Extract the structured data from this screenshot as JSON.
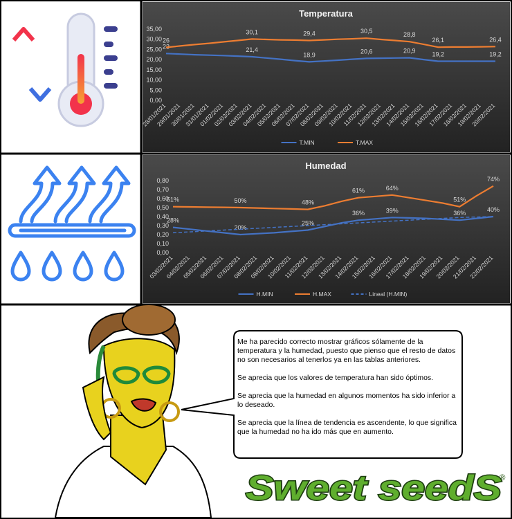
{
  "chart_data": [
    {
      "type": "line",
      "title": "Temperatura",
      "categories": [
        "28/01/2021",
        "29/01/2021",
        "30/01/2021",
        "31/01/2021",
        "01/02/2021",
        "02/02/2021",
        "03/02/2021",
        "04/02/2021",
        "05/02/2021",
        "06/02/2021",
        "07/02/2021",
        "08/02/2021",
        "09/02/2021",
        "10/02/2021",
        "11/02/2021",
        "12/02/2021",
        "13/02/2021",
        "14/02/2021",
        "15/02/2021",
        "16/02/2021",
        "17/02/2021",
        "18/02/2021",
        "19/02/2021",
        "20/02/2021"
      ],
      "series": [
        {
          "name": "T.MIN",
          "color": "#4472c4",
          "values": [
            23,
            22.7,
            22.4,
            22.2,
            22,
            21.7,
            21.4,
            20.8,
            20.2,
            19.5,
            18.9,
            19.3,
            19.7,
            20.2,
            20.6,
            20.7,
            20.8,
            20.9,
            20,
            19.2,
            19.2,
            19.2,
            19.2,
            19.2
          ],
          "value_labels": [
            "23",
            null,
            null,
            null,
            null,
            null,
            "21,4",
            null,
            null,
            null,
            "18,9",
            null,
            null,
            null,
            "20,6",
            null,
            null,
            "20,9",
            null,
            "19,2",
            null,
            null,
            null,
            "19,2"
          ]
        },
        {
          "name": "T.MAX",
          "color": "#ed7d31",
          "values": [
            26,
            26.7,
            27.4,
            28,
            28.7,
            29.4,
            30.1,
            29.9,
            29.7,
            29.6,
            29.4,
            29.7,
            30,
            30.2,
            30.5,
            29.9,
            29.4,
            28.8,
            27.5,
            26.1,
            26.2,
            26.2,
            26.3,
            26.4
          ],
          "value_labels": [
            "26",
            null,
            null,
            null,
            null,
            null,
            "30,1",
            null,
            null,
            null,
            "29,4",
            null,
            null,
            null,
            "30,5",
            null,
            null,
            "28,8",
            null,
            "26,1",
            null,
            null,
            null,
            "26,4"
          ]
        }
      ],
      "ylim": [
        0,
        35
      ],
      "yticks": [
        {
          "value": 0,
          "label": "0,00"
        },
        {
          "value": 5,
          "label": "5,00"
        },
        {
          "value": 10,
          "label": "10,00"
        },
        {
          "value": 15,
          "label": "15,00"
        },
        {
          "value": 20,
          "label": "20,00"
        },
        {
          "value": 25,
          "label": "25,00"
        },
        {
          "value": 30,
          "label": "30,00"
        },
        {
          "value": 35,
          "label": "35,00"
        }
      ],
      "grid": false,
      "legend": "bottom"
    },
    {
      "type": "line",
      "title": "Humedad",
      "categories": [
        "03/02/2021",
        "04/02/2021",
        "05/02/2021",
        "06/02/2021",
        "07/02/2021",
        "08/02/2021",
        "09/02/2021",
        "10/02/2021",
        "11/02/2021",
        "12/02/2021",
        "13/02/2021",
        "14/02/2021",
        "15/02/2021",
        "16/02/2021",
        "17/02/2021",
        "18/02/2021",
        "19/02/2021",
        "20/02/2021",
        "21/02/2021",
        "22/02/2021"
      ],
      "series": [
        {
          "name": "H.MIN",
          "color": "#4472c4",
          "values": [
            0.28,
            0.26,
            0.24,
            0.22,
            0.2,
            0.21,
            0.22,
            0.235,
            0.25,
            0.29,
            0.33,
            0.36,
            0.375,
            0.39,
            0.385,
            0.38,
            0.37,
            0.36,
            0.38,
            0.4
          ],
          "value_labels": [
            "28%",
            null,
            null,
            null,
            "20%",
            null,
            null,
            null,
            "25%",
            null,
            null,
            "36%",
            null,
            "39%",
            null,
            null,
            null,
            "36%",
            null,
            "40%"
          ]
        },
        {
          "name": "H.MAX",
          "color": "#ed7d31",
          "values": [
            0.51,
            0.508,
            0.505,
            0.503,
            0.5,
            0.495,
            0.49,
            0.485,
            0.48,
            0.52,
            0.57,
            0.61,
            0.625,
            0.64,
            0.61,
            0.58,
            0.55,
            0.51,
            0.63,
            0.74
          ],
          "value_labels": [
            "51%",
            null,
            null,
            null,
            "50%",
            null,
            null,
            null,
            "48%",
            null,
            null,
            "61%",
            null,
            "64%",
            null,
            null,
            null,
            "51%",
            null,
            "74%"
          ]
        },
        {
          "name": "Lineal (H.MIN)",
          "color": "#4472c4",
          "dash": true,
          "values": [
            0.22,
            0.23,
            0.24,
            0.25,
            0.26,
            0.27,
            0.28,
            0.29,
            0.3,
            0.31,
            0.32,
            0.33,
            0.34,
            0.35,
            0.36,
            0.37,
            0.38,
            0.39,
            0.395,
            0.4
          ]
        }
      ],
      "ylim": [
        0,
        0.8
      ],
      "yticks": [
        {
          "value": 0,
          "label": "0,00"
        },
        {
          "value": 0.1,
          "label": "0,10"
        },
        {
          "value": 0.2,
          "label": "0,20"
        },
        {
          "value": 0.3,
          "label": "0,30"
        },
        {
          "value": 0.4,
          "label": "0,40"
        },
        {
          "value": 0.5,
          "label": "0,50"
        },
        {
          "value": 0.6,
          "label": "0,60"
        },
        {
          "value": 0.7,
          "label": "0,70"
        },
        {
          "value": 0.8,
          "label": "0,80"
        }
      ],
      "grid": false,
      "legend": "bottom"
    }
  ],
  "speech": {
    "paragraphs": [
      "Me ha parecido correcto mostrar gráficos sólamente de la temperatura y la humedad, puesto que pienso que el resto de datos no son necesarios al tenerlos ya en las tablas anteriores.",
      "Se aprecia que los valores de temperatura han sido óptimos.",
      "Se aprecia que la humedad en algunos momentos ha sido inferior a lo deseado.",
      "Se aprecia que la línea de tendencia es ascendente, lo que significa que la humedad no ha ido más que en aumento."
    ]
  },
  "logo": {
    "text": "Sweet seedS",
    "mark": "®"
  }
}
